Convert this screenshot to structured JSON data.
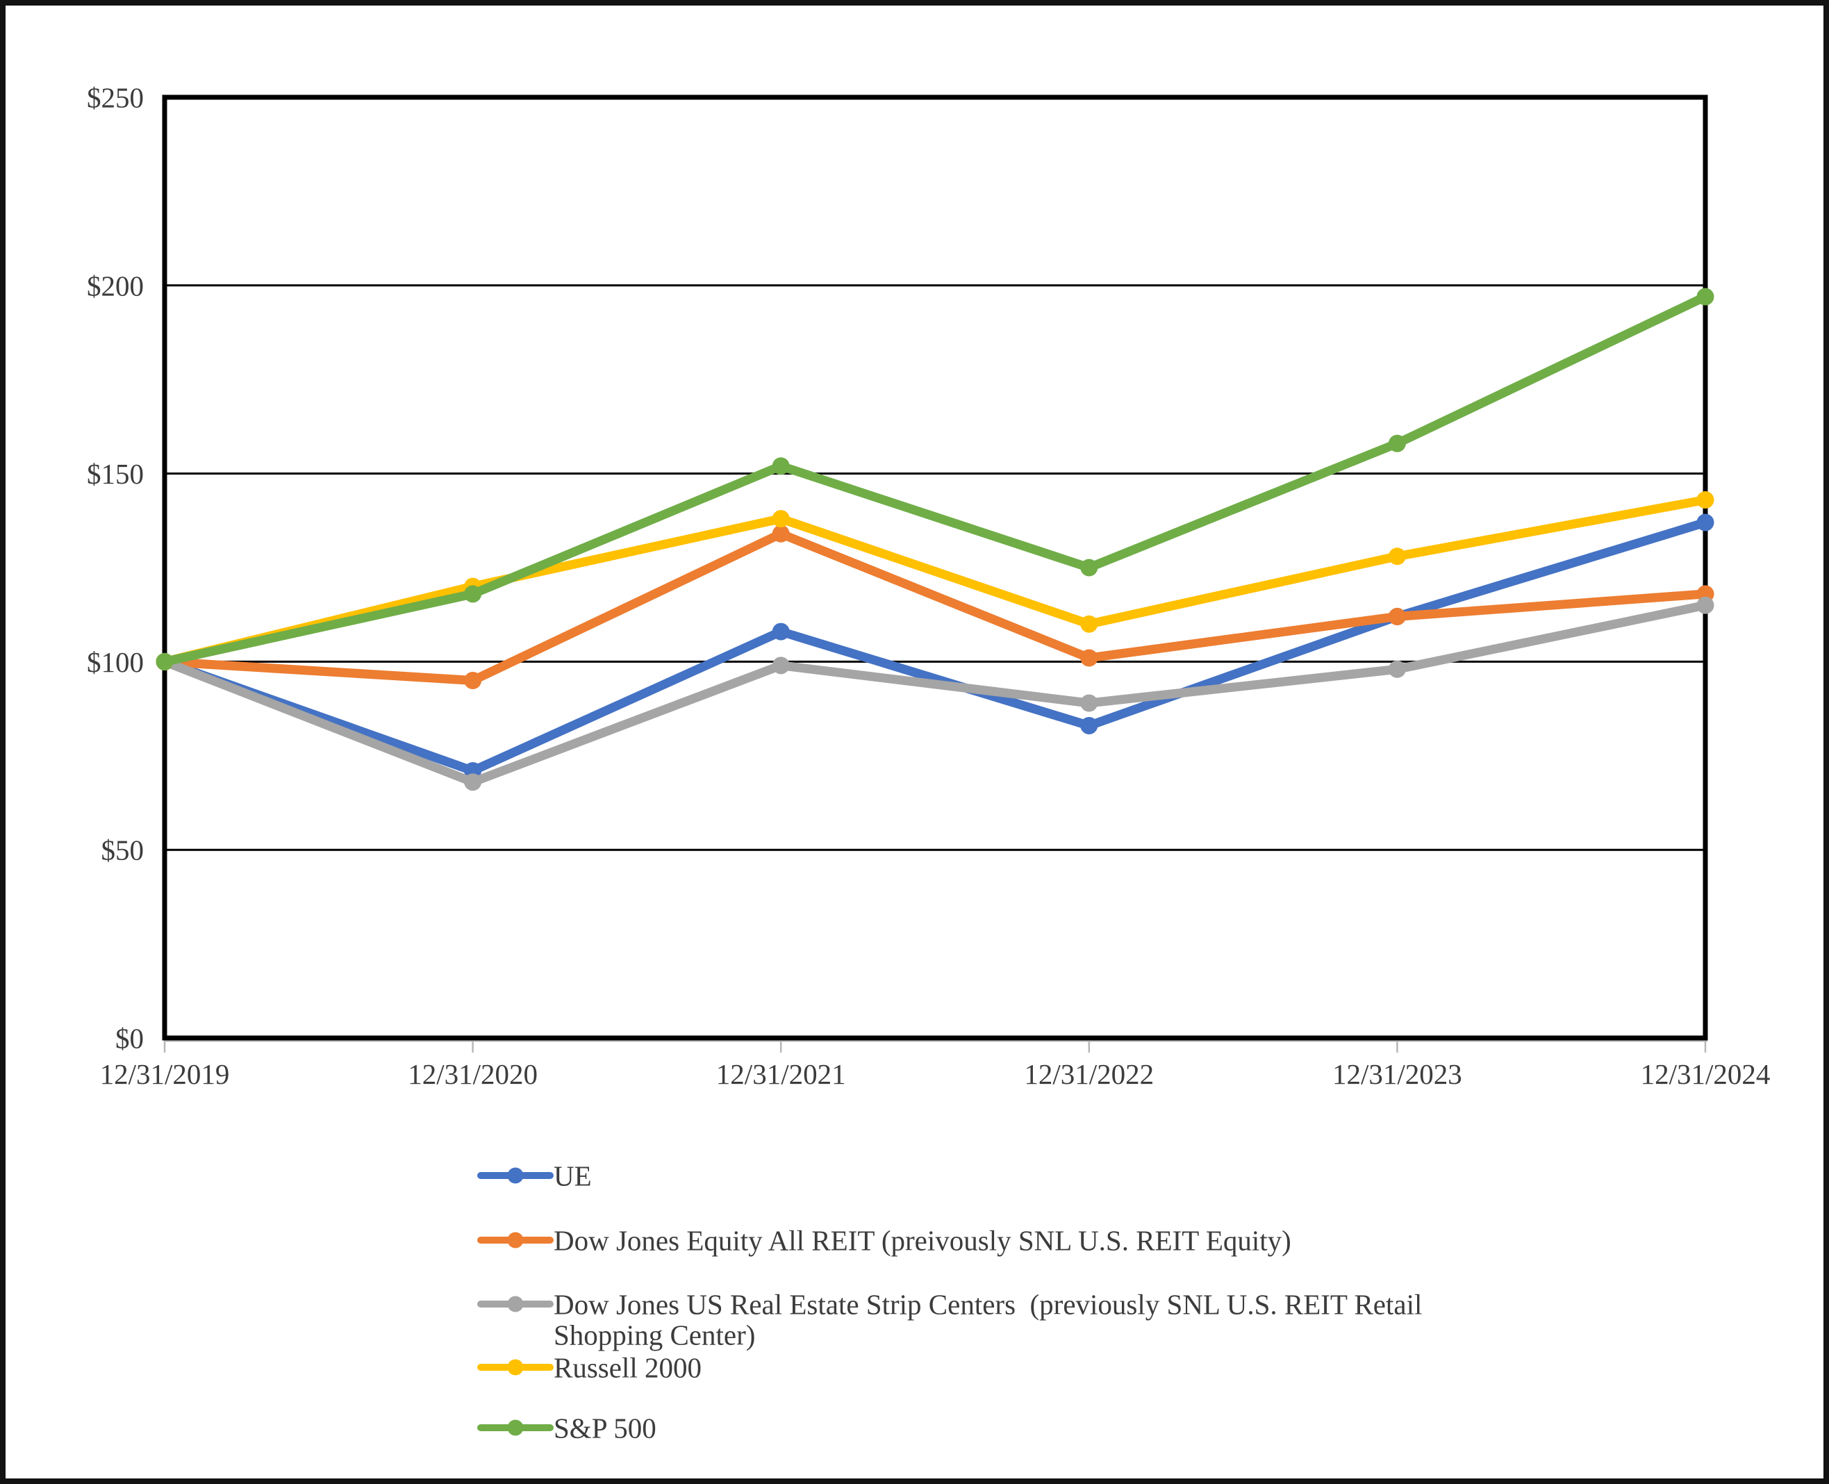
{
  "chart_data": {
    "type": "line",
    "title": "",
    "categories": [
      "12/31/2019",
      "12/31/2020",
      "12/31/2021",
      "12/31/2022",
      "12/31/2023",
      "12/31/2024"
    ],
    "series": [
      {
        "name": "UE",
        "color": "#4472C4",
        "values": [
          100,
          71,
          108,
          83,
          112,
          137
        ]
      },
      {
        "name": "Dow Jones Equity All REIT (preivously SNL U.S. REIT Equity)",
        "color": "#ED7D31",
        "values": [
          100,
          95,
          134,
          101,
          112,
          118
        ]
      },
      {
        "name": "Dow Jones US Real Estate Strip Centers  (previously SNL U.S. REIT Retail Shopping Center)",
        "color": "#A5A5A5",
        "values": [
          100,
          68,
          99,
          89,
          98,
          115
        ],
        "legend_lines": [
          "Dow Jones US Real Estate Strip Centers  (previously SNL U.S. REIT Retail",
          "Shopping Center)"
        ]
      },
      {
        "name": "Russell 2000",
        "color": "#FFC000",
        "values": [
          100,
          120,
          138,
          110,
          128,
          143
        ]
      },
      {
        "name": "S&P 500",
        "color": "#70AD47",
        "values": [
          100,
          118,
          152,
          125,
          158,
          197
        ]
      }
    ],
    "y_axis": {
      "min": 0,
      "max": 250,
      "step": 50,
      "tick_labels": [
        "$0",
        "$50",
        "$100",
        "$150",
        "$200",
        "$250"
      ]
    },
    "x_axis": {
      "tick_labels": [
        "12/31/2019",
        "12/31/2020",
        "12/31/2021",
        "12/31/2022",
        "12/31/2023",
        "12/31/2024"
      ]
    },
    "grid": true,
    "legend_position": "bottom-left",
    "frame_color": "#000000",
    "page_border_color": "#131313"
  }
}
